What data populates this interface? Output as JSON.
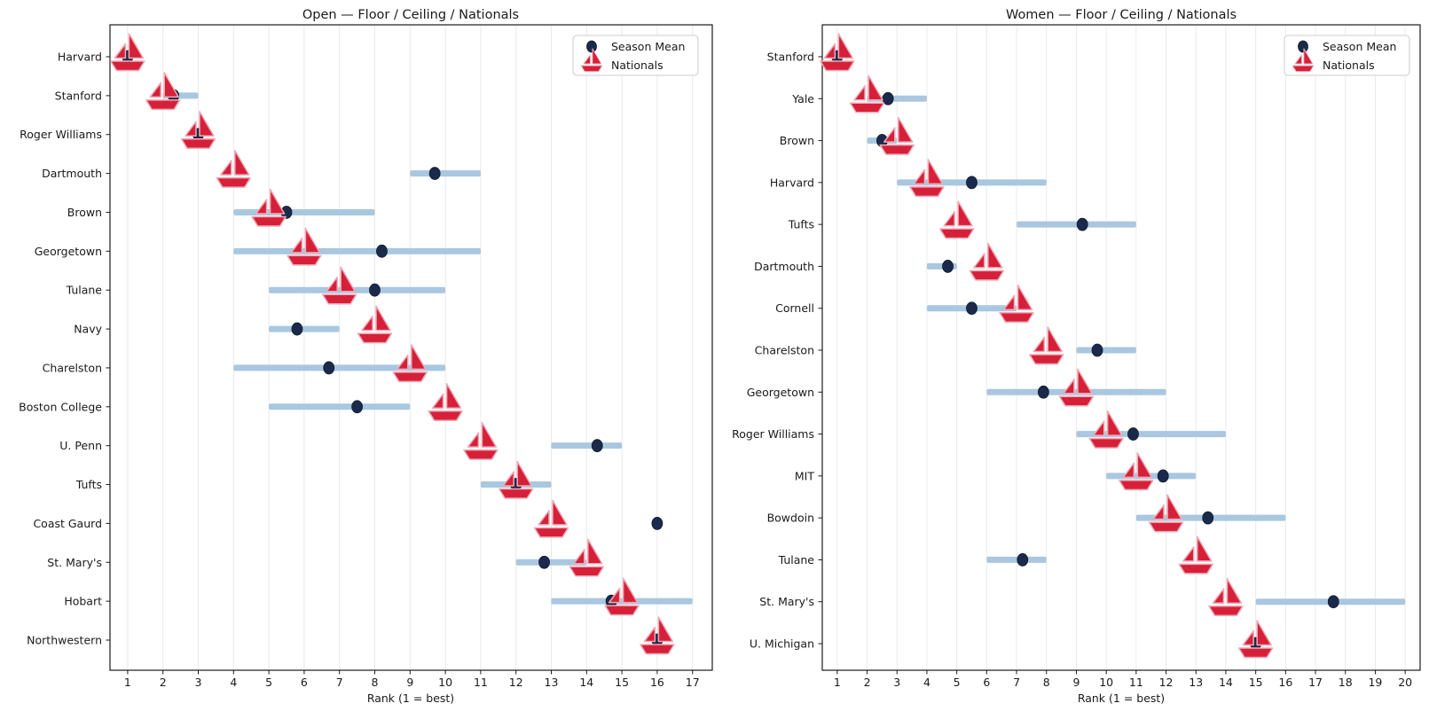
{
  "colors": {
    "bar": "#a9c7e0",
    "dot": "#1b2a4a",
    "dot_edge": "#0e1b33",
    "boat_fill": "#d62039",
    "boat_stroke": "#f0aab6",
    "grid": "#eaeaea",
    "spine": "#1a1a1a",
    "text": "#1a1a1a",
    "legend_border": "#cccccc",
    "background": "#ffffff"
  },
  "chart_data": [
    {
      "type": "scatter",
      "subtype": "floor-ceiling-range-with-markers",
      "title": "Open — Floor / Ceiling / Nationals",
      "xlabel": "Rank (1 = best)",
      "ylabel": "",
      "xlim": [
        0.5,
        17.56
      ],
      "xticks": [
        1,
        2,
        3,
        4,
        5,
        6,
        7,
        8,
        9,
        10,
        11,
        12,
        13,
        14,
        15,
        16,
        17
      ],
      "grid": true,
      "legend": [
        "Season Mean",
        "Nationals"
      ],
      "legend_position": "upper right",
      "series_notes": "floor/ceiling = light blue range bar, season_mean = navy dot, nationals = red sailboat marker",
      "teams": [
        {
          "name": "Harvard",
          "floor": 1,
          "ceiling": 1,
          "season_mean": 1.0,
          "nationals": 1
        },
        {
          "name": "Stanford",
          "floor": 2,
          "ceiling": 3,
          "season_mean": 2.3,
          "nationals": 2
        },
        {
          "name": "Roger Williams",
          "floor": 3,
          "ceiling": 3,
          "season_mean": 3.0,
          "nationals": 3
        },
        {
          "name": "Dartmouth",
          "floor": 9,
          "ceiling": 11,
          "season_mean": 9.7,
          "nationals": 4
        },
        {
          "name": "Brown",
          "floor": 4,
          "ceiling": 8,
          "season_mean": 5.5,
          "nationals": 5
        },
        {
          "name": "Georgetown",
          "floor": 4,
          "ceiling": 11,
          "season_mean": 8.2,
          "nationals": 6
        },
        {
          "name": "Tulane",
          "floor": 5,
          "ceiling": 10,
          "season_mean": 8.0,
          "nationals": 7
        },
        {
          "name": "Navy",
          "floor": 5,
          "ceiling": 7,
          "season_mean": 5.8,
          "nationals": 8
        },
        {
          "name": "Charelston",
          "floor": 4,
          "ceiling": 10,
          "season_mean": 6.7,
          "nationals": 9
        },
        {
          "name": "Boston College",
          "floor": 5,
          "ceiling": 9,
          "season_mean": 7.5,
          "nationals": 10
        },
        {
          "name": "U. Penn",
          "floor": 13,
          "ceiling": 15,
          "season_mean": 14.3,
          "nationals": 11
        },
        {
          "name": "Tufts",
          "floor": 11,
          "ceiling": 13,
          "season_mean": 12.0,
          "nationals": 12
        },
        {
          "name": "Coast Gaurd",
          "floor": 16,
          "ceiling": 16,
          "season_mean": 16.0,
          "nationals": 13
        },
        {
          "name": "St. Mary's",
          "floor": 12,
          "ceiling": 14,
          "season_mean": 12.8,
          "nationals": 14
        },
        {
          "name": "Hobart",
          "floor": 13,
          "ceiling": 17,
          "season_mean": 14.7,
          "nationals": 15
        },
        {
          "name": "Northwestern",
          "floor": 16,
          "ceiling": 16,
          "season_mean": 16.0,
          "nationals": 16
        }
      ]
    },
    {
      "type": "scatter",
      "subtype": "floor-ceiling-range-with-markers",
      "title": "Women — Floor / Ceiling / Nationals",
      "xlabel": "Rank (1 = best)",
      "ylabel": "",
      "xlim": [
        0.5,
        20.5
      ],
      "xticks": [
        1,
        2,
        3,
        4,
        5,
        6,
        7,
        8,
        9,
        10,
        11,
        12,
        13,
        14,
        15,
        16,
        17,
        18,
        19,
        20
      ],
      "grid": true,
      "legend": [
        "Season Mean",
        "Nationals"
      ],
      "legend_position": "upper right",
      "series_notes": "floor/ceiling = light blue range bar, season_mean = navy dot, nationals = red sailboat marker",
      "teams": [
        {
          "name": "Stanford",
          "floor": 1,
          "ceiling": 1,
          "season_mean": 1.0,
          "nationals": 1
        },
        {
          "name": "Yale",
          "floor": 2,
          "ceiling": 4,
          "season_mean": 2.7,
          "nationals": 2
        },
        {
          "name": "Brown",
          "floor": 2,
          "ceiling": 3,
          "season_mean": 2.5,
          "nationals": 3
        },
        {
          "name": "Harvard",
          "floor": 3,
          "ceiling": 8,
          "season_mean": 5.5,
          "nationals": 4
        },
        {
          "name": "Tufts",
          "floor": 7,
          "ceiling": 11,
          "season_mean": 9.2,
          "nationals": 5
        },
        {
          "name": "Dartmouth",
          "floor": 4,
          "ceiling": 5,
          "season_mean": 4.7,
          "nationals": 6
        },
        {
          "name": "Cornell",
          "floor": 4,
          "ceiling": 7,
          "season_mean": 5.5,
          "nationals": 7
        },
        {
          "name": "Charelston",
          "floor": 9,
          "ceiling": 11,
          "season_mean": 9.7,
          "nationals": 8
        },
        {
          "name": "Georgetown",
          "floor": 6,
          "ceiling": 12,
          "season_mean": 7.9,
          "nationals": 9
        },
        {
          "name": "Roger Williams",
          "floor": 9,
          "ceiling": 14,
          "season_mean": 10.9,
          "nationals": 10
        },
        {
          "name": "MIT",
          "floor": 10,
          "ceiling": 13,
          "season_mean": 11.9,
          "nationals": 11
        },
        {
          "name": "Bowdoin",
          "floor": 11,
          "ceiling": 16,
          "season_mean": 13.4,
          "nationals": 12
        },
        {
          "name": "Tulane",
          "floor": 6,
          "ceiling": 8,
          "season_mean": 7.2,
          "nationals": 13
        },
        {
          "name": "St. Mary's",
          "floor": 15,
          "ceiling": 20,
          "season_mean": 17.6,
          "nationals": 14
        },
        {
          "name": "U. Michigan",
          "floor": 15,
          "ceiling": 15,
          "season_mean": 15.0,
          "nationals": 15
        }
      ]
    }
  ]
}
